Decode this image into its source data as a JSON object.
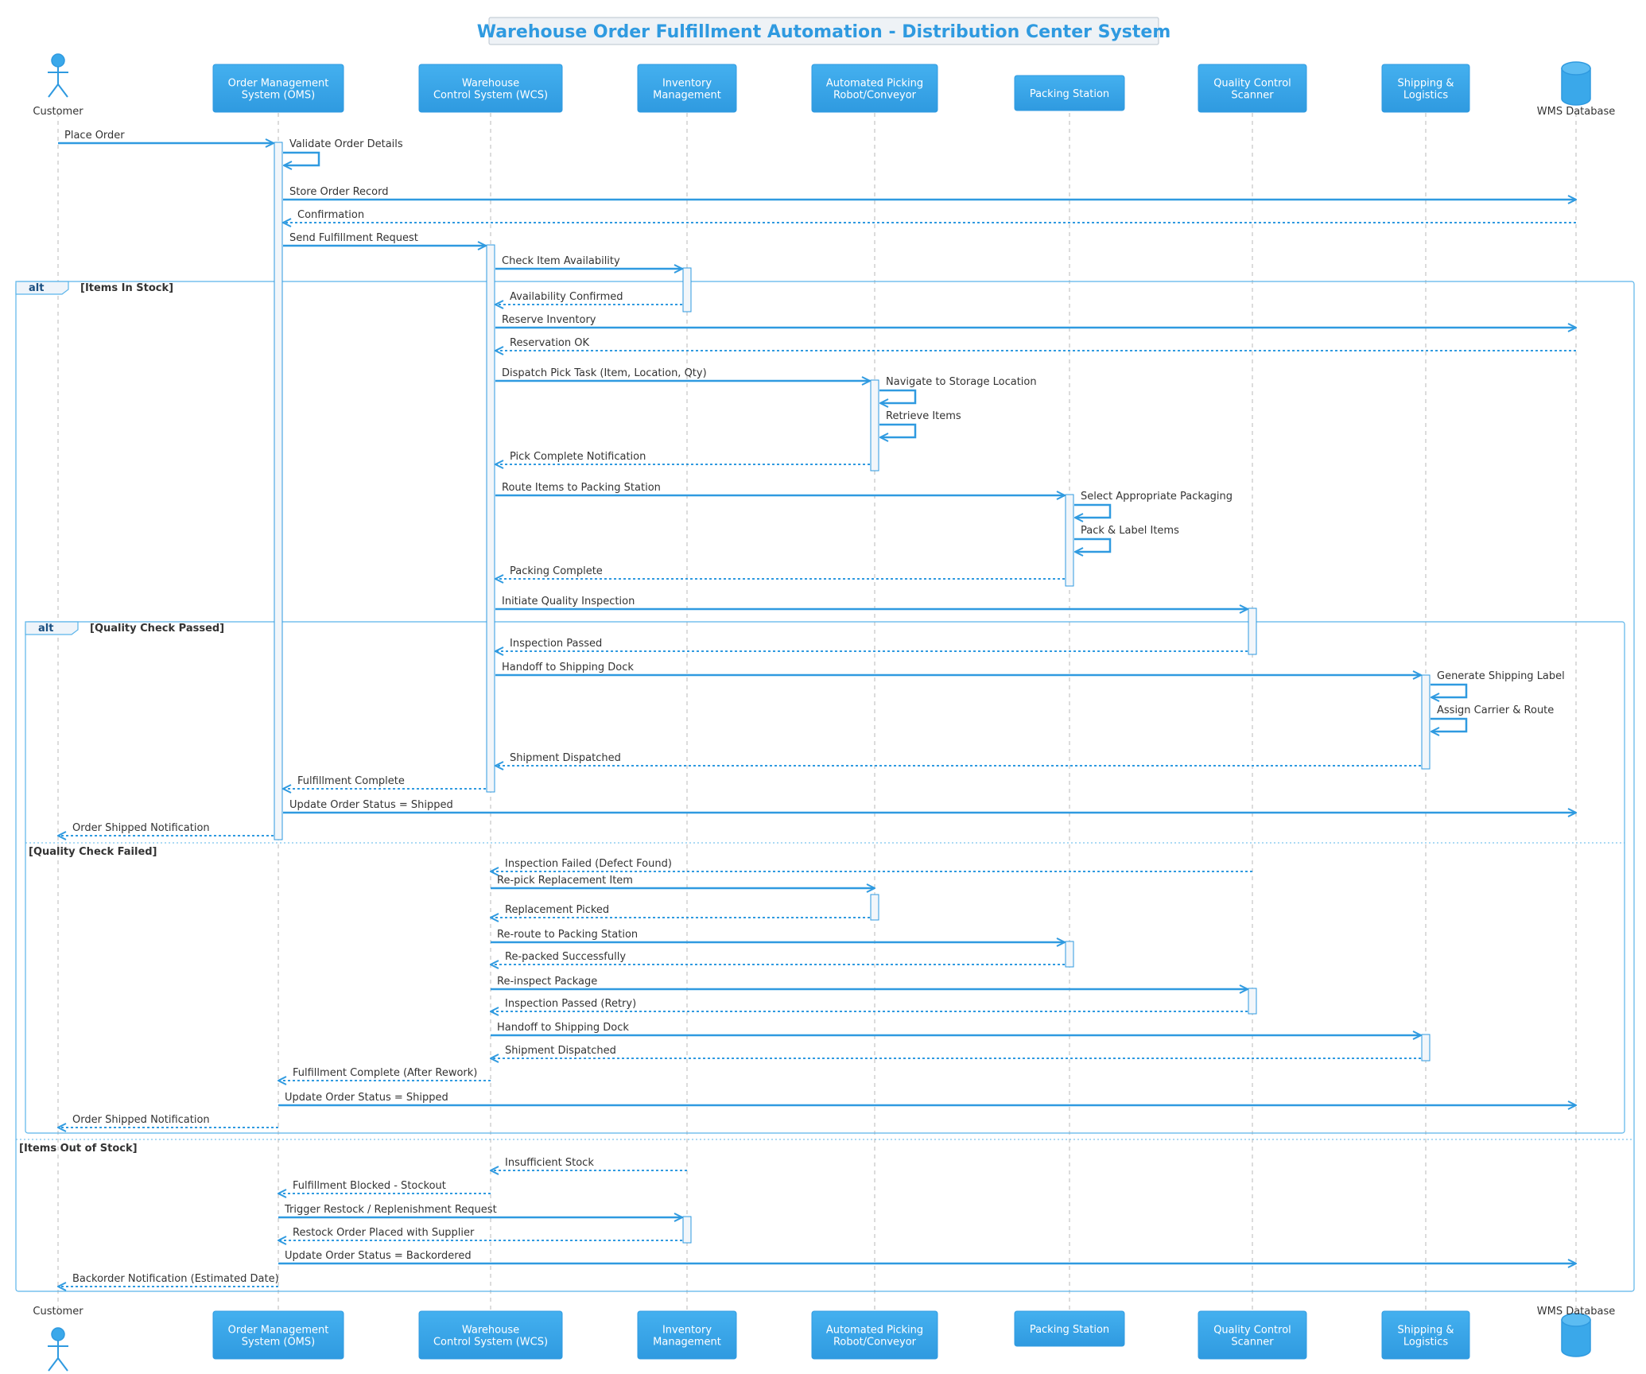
{
  "title": "Warehouse Order Fulfillment Automation - Distribution Center System",
  "colors": {
    "accent": "#2f9ae0",
    "participant_fill": "#3aa8ea",
    "lifeline": "#b8b8b8",
    "activation_fill": "#f2f6fa",
    "fragment_border": "#5ab4ea",
    "text": "#333333",
    "title_bg": "#eef2f6"
  },
  "participants": [
    {
      "id": "customer",
      "label": "Customer",
      "kind": "actor"
    },
    {
      "id": "oms",
      "label": "Order Management\nSystem (OMS)",
      "kind": "box"
    },
    {
      "id": "wcs",
      "label": "Warehouse\nControl System (WCS)",
      "kind": "box"
    },
    {
      "id": "inv",
      "label": "Inventory\nManagement",
      "kind": "box"
    },
    {
      "id": "robot",
      "label": "Automated Picking\nRobot/Conveyor",
      "kind": "box"
    },
    {
      "id": "pack",
      "label": "Packing Station",
      "kind": "box"
    },
    {
      "id": "qc",
      "label": "Quality Control\nScanner",
      "kind": "box"
    },
    {
      "id": "ship",
      "label": "Shipping &\nLogistics",
      "kind": "box"
    },
    {
      "id": "db",
      "label": "WMS Database",
      "kind": "database"
    }
  ],
  "messages": [
    {
      "from": "customer",
      "to": "oms",
      "label": "Place Order",
      "style": "solid"
    },
    {
      "from": "oms",
      "to": "oms",
      "label": "Validate Order Details",
      "style": "self"
    },
    {
      "from": "oms",
      "to": "db",
      "label": "Store Order Record",
      "style": "solid"
    },
    {
      "from": "db",
      "to": "oms",
      "label": "Confirmation",
      "style": "dashed"
    },
    {
      "from": "oms",
      "to": "wcs",
      "label": "Send Fulfillment Request",
      "style": "solid"
    },
    {
      "from": "wcs",
      "to": "inv",
      "label": "Check Item Availability",
      "style": "solid"
    },
    {
      "from": "inv",
      "to": "wcs",
      "label": "Availability Confirmed",
      "style": "dashed"
    },
    {
      "from": "wcs",
      "to": "db",
      "label": "Reserve Inventory",
      "style": "solid"
    },
    {
      "from": "db",
      "to": "wcs",
      "label": "Reservation OK",
      "style": "dashed"
    },
    {
      "from": "wcs",
      "to": "robot",
      "label": "Dispatch Pick Task (Item, Location, Qty)",
      "style": "solid"
    },
    {
      "from": "robot",
      "to": "robot",
      "label": "Navigate to Storage Location",
      "style": "self"
    },
    {
      "from": "robot",
      "to": "robot",
      "label": "Retrieve Items",
      "style": "self"
    },
    {
      "from": "robot",
      "to": "wcs",
      "label": "Pick Complete Notification",
      "style": "dashed"
    },
    {
      "from": "wcs",
      "to": "pack",
      "label": "Route Items to Packing Station",
      "style": "solid"
    },
    {
      "from": "pack",
      "to": "pack",
      "label": "Select Appropriate Packaging",
      "style": "self"
    },
    {
      "from": "pack",
      "to": "pack",
      "label": "Pack & Label Items",
      "style": "self"
    },
    {
      "from": "pack",
      "to": "wcs",
      "label": "Packing Complete",
      "style": "dashed"
    },
    {
      "from": "wcs",
      "to": "qc",
      "label": "Initiate Quality Inspection",
      "style": "solid"
    },
    {
      "from": "qc",
      "to": "wcs",
      "label": "Inspection Passed",
      "style": "dashed"
    },
    {
      "from": "wcs",
      "to": "ship",
      "label": "Handoff to Shipping Dock",
      "style": "solid"
    },
    {
      "from": "ship",
      "to": "ship",
      "label": "Generate Shipping Label",
      "style": "self"
    },
    {
      "from": "ship",
      "to": "ship",
      "label": "Assign Carrier & Route",
      "style": "self"
    },
    {
      "from": "ship",
      "to": "wcs",
      "label": "Shipment Dispatched",
      "style": "dashed"
    },
    {
      "from": "wcs",
      "to": "oms",
      "label": "Fulfillment Complete",
      "style": "dashed"
    },
    {
      "from": "oms",
      "to": "db",
      "label": "Update Order Status = Shipped",
      "style": "solid"
    },
    {
      "from": "oms",
      "to": "customer",
      "label": "Order Shipped Notification",
      "style": "dashed"
    },
    {
      "from": "qc",
      "to": "wcs",
      "label": "Inspection Failed (Defect Found)",
      "style": "dashed"
    },
    {
      "from": "wcs",
      "to": "robot",
      "label": "Re-pick Replacement Item",
      "style": "solid"
    },
    {
      "from": "robot",
      "to": "wcs",
      "label": "Replacement Picked",
      "style": "dashed"
    },
    {
      "from": "wcs",
      "to": "pack",
      "label": "Re-route to Packing Station",
      "style": "solid"
    },
    {
      "from": "pack",
      "to": "wcs",
      "label": "Re-packed Successfully",
      "style": "dashed"
    },
    {
      "from": "wcs",
      "to": "qc",
      "label": "Re-inspect Package",
      "style": "solid"
    },
    {
      "from": "qc",
      "to": "wcs",
      "label": "Inspection Passed (Retry)",
      "style": "dashed"
    },
    {
      "from": "wcs",
      "to": "ship",
      "label": "Handoff to Shipping Dock",
      "style": "solid"
    },
    {
      "from": "ship",
      "to": "wcs",
      "label": "Shipment Dispatched",
      "style": "dashed"
    },
    {
      "from": "wcs",
      "to": "oms",
      "label": "Fulfillment Complete (After Rework)",
      "style": "dashed"
    },
    {
      "from": "oms",
      "to": "db",
      "label": "Update Order Status = Shipped",
      "style": "solid"
    },
    {
      "from": "oms",
      "to": "customer",
      "label": "Order Shipped Notification",
      "style": "dashed"
    },
    {
      "from": "inv",
      "to": "wcs",
      "label": "Insufficient Stock",
      "style": "dashed"
    },
    {
      "from": "wcs",
      "to": "oms",
      "label": "Fulfillment Blocked - Stockout",
      "style": "dashed"
    },
    {
      "from": "oms",
      "to": "inv",
      "label": "Trigger Restock / Replenishment Request",
      "style": "solid"
    },
    {
      "from": "inv",
      "to": "oms",
      "label": "Restock Order Placed with Supplier",
      "style": "dashed"
    },
    {
      "from": "oms",
      "to": "db",
      "label": "Update Order Status = Backordered",
      "style": "solid"
    },
    {
      "from": "oms",
      "to": "customer",
      "label": "Backorder Notification (Estimated Date)",
      "style": "dashed"
    }
  ],
  "fragments": [
    {
      "operator": "alt",
      "guard": "[Items In Stock]",
      "else_guards": [
        "[Items Out of Stock]"
      ]
    },
    {
      "operator": "alt",
      "guard": "[Quality Check Passed]",
      "else_guards": [
        "[Quality Check Failed]"
      ]
    }
  ]
}
